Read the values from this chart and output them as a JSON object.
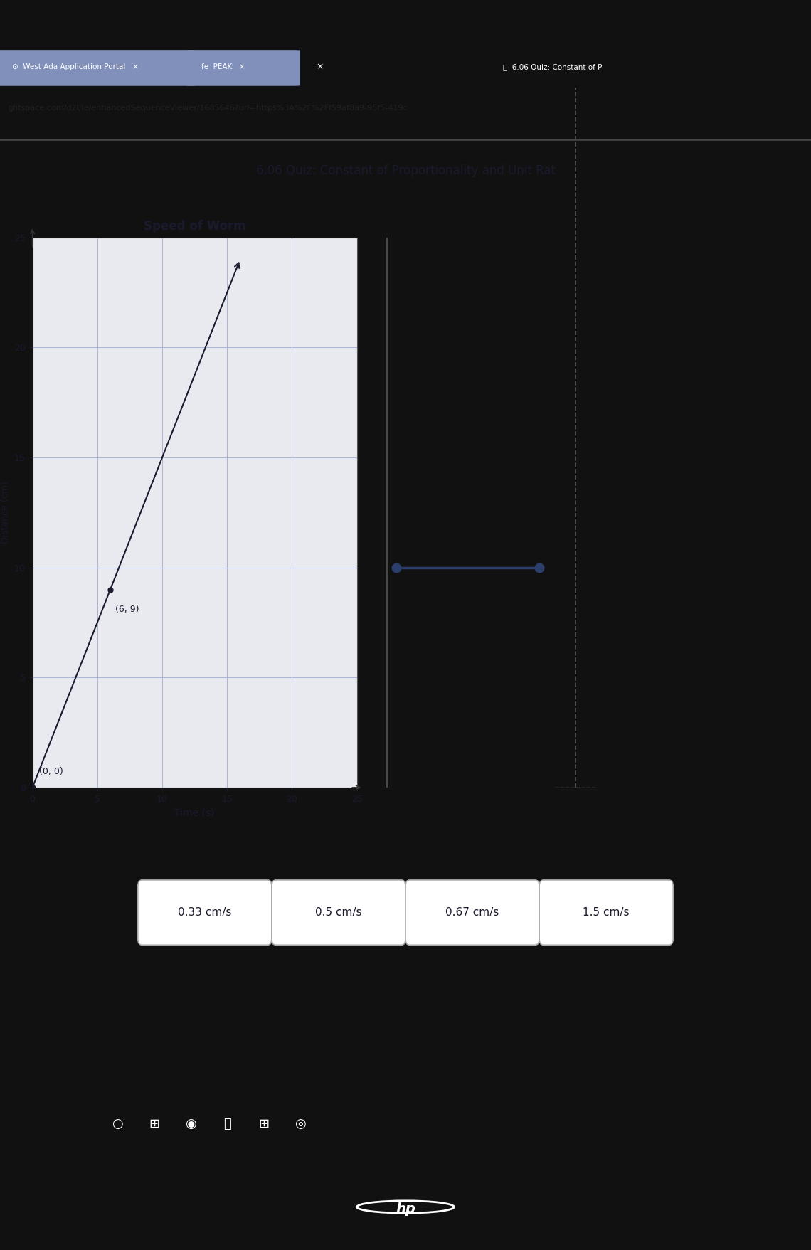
{
  "browser_tab1": "West Ada Application Portal",
  "browser_tab2": "fe PEAK",
  "browser_tab3": "6.06 Quiz: Constant of P",
  "url": "ghtspace.com/d2l/le/enhancedSequenceViewer/1685646?url=https%3A%2F%2Ff59af8a9-95f5-419c",
  "page_title": "6.06 Quiz: Constant of Proportionality and Unit Rat",
  "graph_title": "Speed of Worm",
  "xlabel": "Time (s)",
  "ylabel": "Distance (cm)",
  "xlim": [
    0,
    25
  ],
  "ylim": [
    0,
    25
  ],
  "xticks": [
    0,
    5,
    10,
    15,
    20,
    25
  ],
  "yticks": [
    0,
    5,
    10,
    15,
    20,
    25
  ],
  "line_x": [
    0,
    16
  ],
  "line_y": [
    0,
    24
  ],
  "point1_x": 0,
  "point1_y": 0,
  "point1_label": "(0, 0)",
  "point2_x": 6,
  "point2_y": 9,
  "point2_label": "(6, 9)",
  "line_color": "#1a1a2e",
  "point_color": "#1a1a2e",
  "grid_color": "#aab4d4",
  "graph_bg": "#e8eaf0",
  "content_bg": "#f0f0f0",
  "answer_buttons": [
    "0.33 cm/s",
    "0.5 cm/s",
    "0.67 cm/s",
    "1.5 cm/s"
  ],
  "slider_y_data": 10,
  "browser_bar_color": "#5a6b9a",
  "tab_bar_color": "#6b7db3",
  "url_bar_color": "#e0e0e0",
  "taskbar_color": "#2a3a7a",
  "laptop_frame_color": "#111111",
  "white_area_color": "#f5f5f5",
  "separator_color": "#888888"
}
